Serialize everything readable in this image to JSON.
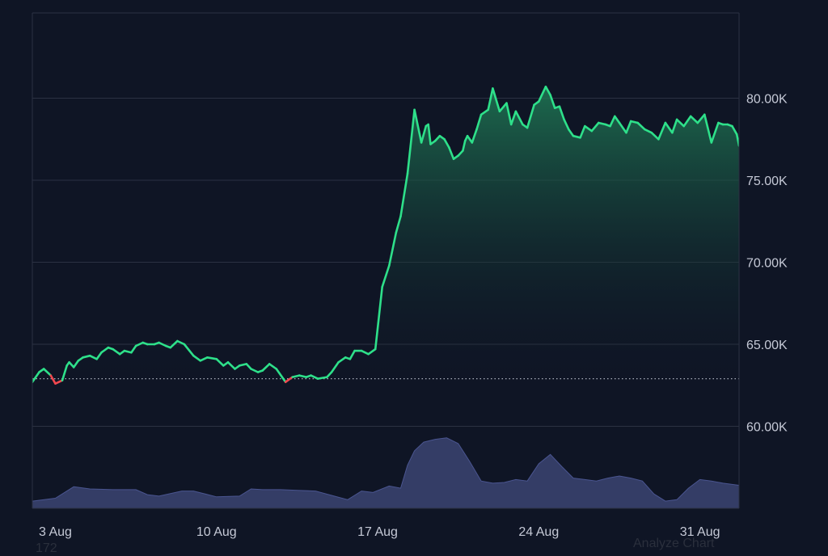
{
  "chart_data": {
    "type": "area",
    "title": "",
    "xlabel": "",
    "ylabel": "",
    "ylim": [
      55000,
      85200
    ],
    "y_ticks": [
      {
        "value": 60000,
        "label": "60.00K"
      },
      {
        "value": 65000,
        "label": "65.00K"
      },
      {
        "value": 70000,
        "label": "70.00K"
      },
      {
        "value": 75000,
        "label": "75.00K"
      },
      {
        "value": 80000,
        "label": "80.00K"
      }
    ],
    "x_ticks": [
      {
        "value": 3,
        "label": "3 Aug"
      },
      {
        "value": 10,
        "label": "10 Aug"
      },
      {
        "value": 17,
        "label": "17 Aug"
      },
      {
        "value": 24,
        "label": "24 Aug"
      },
      {
        "value": 31,
        "label": "31 Aug"
      }
    ],
    "xlim": [
      2.0,
      32.7
    ],
    "baseline": 62900,
    "grid": true,
    "colors": {
      "background": "#0f1525",
      "line_up": "#2ee08a",
      "line_down": "#f0474f",
      "area_top": "#1f7a55",
      "grid": "#2b3142",
      "baseline_dots": "#c5c9d6",
      "volume": "#343d66",
      "volume_edge": "#4a5590"
    },
    "series": [
      {
        "kind": "price",
        "x": [
          2.0,
          2.3,
          2.5,
          2.8,
          3.0,
          3.3,
          3.5,
          3.6,
          3.8,
          4.0,
          4.2,
          4.5,
          4.8,
          5.0,
          5.3,
          5.5,
          5.8,
          6.0,
          6.3,
          6.5,
          6.8,
          7.0,
          7.3,
          7.5,
          7.8,
          8.0,
          8.3,
          8.6,
          9.0,
          9.3,
          9.6,
          10.0,
          10.3,
          10.5,
          10.8,
          11.0,
          11.3,
          11.5,
          11.8,
          12.0,
          12.3,
          12.6,
          13.0,
          13.3,
          13.6,
          13.9,
          14.1,
          14.4,
          14.8,
          15.0,
          15.3,
          15.6,
          15.8,
          16.0,
          16.3,
          16.6,
          16.9,
          17.2,
          17.5,
          17.8,
          18.0,
          18.3,
          18.6,
          18.9,
          19.1,
          19.2,
          19.3,
          19.5,
          19.7,
          19.9,
          20.1,
          20.3,
          20.5,
          20.7,
          20.8,
          20.9,
          21.1,
          21.3,
          21.5,
          21.8,
          22.0,
          22.3,
          22.6,
          22.8,
          23.0,
          23.3,
          23.5,
          23.8,
          24.0,
          24.3,
          24.5,
          24.7,
          24.9,
          25.1,
          25.3,
          25.5,
          25.8,
          26.0,
          26.3,
          26.6,
          26.9,
          27.1,
          27.3,
          27.5,
          27.8,
          28.0,
          28.3,
          28.6,
          28.9,
          29.2,
          29.5,
          29.8,
          30.0,
          30.3,
          30.6,
          30.9,
          31.2,
          31.5,
          31.8,
          32.0,
          32.2,
          32.4,
          32.6,
          32.7
        ],
        "y": [
          62700,
          63300,
          63500,
          63100,
          62600,
          62800,
          63700,
          63900,
          63600,
          64000,
          64200,
          64300,
          64100,
          64500,
          64800,
          64700,
          64400,
          64600,
          64500,
          64900,
          65100,
          65000,
          65000,
          65100,
          64900,
          64800,
          65200,
          65000,
          64300,
          64000,
          64200,
          64100,
          63700,
          63900,
          63500,
          63700,
          63800,
          63500,
          63300,
          63400,
          63800,
          63500,
          62700,
          63000,
          63100,
          63000,
          63100,
          62900,
          63000,
          63300,
          63900,
          64200,
          64100,
          64600,
          64600,
          64400,
          64700,
          68500,
          69800,
          71800,
          72800,
          75400,
          79300,
          77300,
          78300,
          78400,
          77200,
          77400,
          77700,
          77500,
          77000,
          76300,
          76500,
          76800,
          77400,
          77700,
          77300,
          78100,
          79000,
          79300,
          80600,
          79200,
          79700,
          78400,
          79200,
          78400,
          78200,
          79600,
          79800,
          80700,
          80200,
          79400,
          79500,
          78700,
          78100,
          77700,
          77600,
          78300,
          78000,
          78500,
          78400,
          78300,
          78900,
          78500,
          77900,
          78600,
          78500,
          78100,
          77900,
          77500,
          78500,
          77900,
          78700,
          78300,
          78900,
          78500,
          79000,
          77300,
          78500,
          78400,
          78400,
          78300,
          77800,
          77100
        ]
      },
      {
        "kind": "volume",
        "x": [
          2.0,
          3.0,
          3.8,
          4.5,
          5.5,
          6.5,
          7.0,
          7.5,
          8.5,
          9.0,
          10.0,
          11.0,
          11.5,
          12.0,
          12.8,
          13.5,
          14.3,
          15.0,
          15.7,
          16.3,
          16.8,
          17.5,
          18.0,
          18.3,
          18.6,
          19.0,
          19.5,
          20.0,
          20.5,
          21.0,
          21.5,
          22.0,
          22.5,
          23.0,
          23.5,
          24.0,
          24.5,
          25.0,
          25.5,
          26.0,
          26.5,
          27.0,
          27.5,
          28.0,
          28.5,
          29.0,
          29.5,
          30.0,
          30.5,
          31.0,
          31.5,
          32.0,
          32.7
        ],
        "v": [
          0.1,
          0.14,
          0.3,
          0.27,
          0.26,
          0.26,
          0.19,
          0.17,
          0.24,
          0.24,
          0.16,
          0.17,
          0.27,
          0.26,
          0.26,
          0.25,
          0.24,
          0.18,
          0.12,
          0.24,
          0.22,
          0.31,
          0.28,
          0.6,
          0.8,
          0.92,
          0.96,
          0.98,
          0.9,
          0.65,
          0.38,
          0.35,
          0.36,
          0.4,
          0.38,
          0.62,
          0.75,
          0.58,
          0.42,
          0.4,
          0.38,
          0.42,
          0.45,
          0.42,
          0.38,
          0.2,
          0.1,
          0.12,
          0.28,
          0.4,
          0.38,
          0.35,
          0.32
        ]
      }
    ]
  },
  "footer": {
    "analyze_label": "Analyze Chart",
    "partial_text": "172"
  }
}
